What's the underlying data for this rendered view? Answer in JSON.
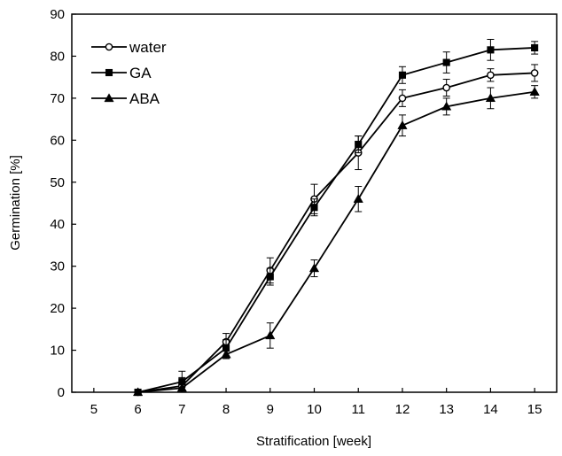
{
  "chart_data": {
    "type": "line",
    "title": "",
    "xlabel": "Stratification [week]",
    "ylabel": "Germination [%]",
    "x_ticks": [
      5,
      6,
      7,
      8,
      9,
      10,
      11,
      12,
      13,
      14,
      15
    ],
    "y_ticks": [
      0,
      10,
      20,
      30,
      40,
      50,
      60,
      70,
      80,
      90
    ],
    "xlim": [
      4.5,
      15.5
    ],
    "ylim": [
      0,
      90
    ],
    "grid": false,
    "legend_position": "top-left",
    "x": [
      6,
      7,
      8,
      9,
      10,
      11,
      12,
      13,
      14,
      15
    ],
    "series": [
      {
        "name": "water",
        "marker": "open-circle",
        "color": "#000000",
        "values": [
          0,
          1.5,
          12,
          29,
          46,
          57,
          70,
          72.5,
          75.5,
          76
        ],
        "errors": [
          0.3,
          2,
          2,
          3,
          3.5,
          4,
          2,
          2,
          1.5,
          2
        ]
      },
      {
        "name": "GA",
        "marker": "filled-square",
        "color": "#000000",
        "values": [
          0,
          2.5,
          10.5,
          27.5,
          44,
          59,
          75.5,
          78.5,
          81.5,
          82
        ],
        "errors": [
          0.3,
          2.5,
          2,
          2,
          2,
          2,
          2,
          2.5,
          2.5,
          1.5
        ]
      },
      {
        "name": "ABA",
        "marker": "filled-triangle",
        "color": "#000000",
        "values": [
          0,
          1,
          9,
          13.5,
          29.5,
          46,
          63.5,
          68,
          70,
          71.5
        ],
        "errors": [
          0.3,
          1,
          1,
          3,
          2,
          3,
          2.5,
          2,
          2.5,
          1.5
        ]
      }
    ]
  }
}
